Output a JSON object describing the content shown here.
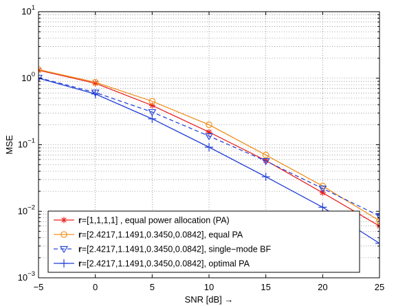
{
  "chart_data": {
    "type": "line",
    "title": "",
    "xlabel": "SNR [dB] →",
    "ylabel": "MSE",
    "xlim": [
      -5,
      25
    ],
    "ylim": [
      0.001,
      10
    ],
    "yscale": "log",
    "grid": true,
    "legend_position": "bottom-left",
    "x_ticks": [
      "−5",
      "0",
      "5",
      "10",
      "15",
      "20",
      "25"
    ],
    "y_ticks": [
      {
        "base": "10",
        "exp": "−3"
      },
      {
        "base": "10",
        "exp": "−2"
      },
      {
        "base": "10",
        "exp": "−1"
      },
      {
        "base": "10",
        "exp": "0"
      },
      {
        "base": "10",
        "exp": "1"
      }
    ],
    "x": [
      -5,
      0,
      5,
      10,
      15,
      20,
      25
    ],
    "series": [
      {
        "name_bold": "r",
        "name_rest": "=[1,1,1,1] , equal power allocation (PA)",
        "color": "#e8241f",
        "dash": "solid",
        "marker": "star",
        "values": [
          1.32,
          0.84,
          0.39,
          0.155,
          0.058,
          0.019,
          0.006
        ]
      },
      {
        "name_bold": "r",
        "name_rest": "=[2.4217,1.1491,0.3450,0.0842], equal PA",
        "color": "#f0901e",
        "dash": "solid",
        "marker": "circle",
        "values": [
          1.35,
          0.87,
          0.45,
          0.2,
          0.07,
          0.024,
          0.0072
        ]
      },
      {
        "name_bold": "r",
        "name_rest": "=[2.4217,1.1491,0.3450,0.0842], single−mode BF",
        "color": "#2a48d8",
        "dash": "dashed",
        "marker": "triangle-down",
        "values": [
          1.02,
          0.61,
          0.31,
          0.135,
          0.057,
          0.022,
          0.0085
        ]
      },
      {
        "name_bold": "r",
        "name_rest": "=[2.4217,1.1491,0.3450,0.0842], optimal PA",
        "color": "#1f3ed6",
        "dash": "solid",
        "marker": "plus",
        "values": [
          1.0,
          0.58,
          0.245,
          0.092,
          0.033,
          0.0115,
          0.0033
        ]
      }
    ]
  }
}
